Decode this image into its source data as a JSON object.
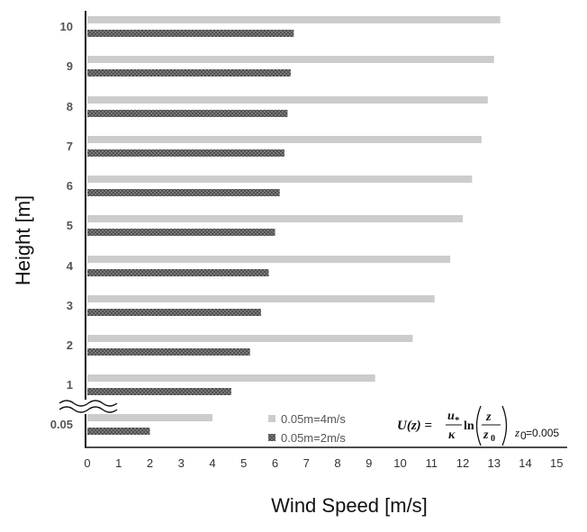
{
  "chart_data": {
    "type": "bar",
    "orientation": "horizontal",
    "title": "",
    "xlabel": "Wind Speed [m/s]",
    "ylabel": "Height [m]",
    "xlim": [
      0,
      15
    ],
    "x_ticks": [
      "0",
      "1",
      "2",
      "3",
      "4",
      "5",
      "6",
      "7",
      "8",
      "9",
      "10",
      "11",
      "12",
      "13",
      "14",
      "15"
    ],
    "categories": [
      "0.05",
      "1",
      "2",
      "3",
      "4",
      "5",
      "6",
      "7",
      "8",
      "9",
      "10"
    ],
    "axis_break": "between 0.05 and 1",
    "series": [
      {
        "name": "0.05m=4m/s",
        "color": "#cccccc",
        "pattern": "solid",
        "values": [
          4.0,
          9.2,
          10.4,
          11.1,
          11.6,
          12.0,
          12.3,
          12.6,
          12.8,
          13.0,
          13.2
        ]
      },
      {
        "name": "0.05m=2m/s",
        "color": "#6e6e6e",
        "pattern": "crosshatch",
        "values": [
          2.0,
          4.6,
          5.2,
          5.55,
          5.8,
          6.0,
          6.15,
          6.3,
          6.4,
          6.5,
          6.6
        ]
      }
    ],
    "legend_position": "bottom-center",
    "grid": false,
    "annotation": {
      "lhs": "U(z) =",
      "frac_num": "u",
      "frac_num_sub": "*",
      "frac_den": "κ",
      "ln": "ln",
      "inner_num": "z",
      "inner_den": "z",
      "inner_den_sub": "0",
      "note_var": "z",
      "note_sub": "0",
      "note_value": "=0.005"
    }
  }
}
